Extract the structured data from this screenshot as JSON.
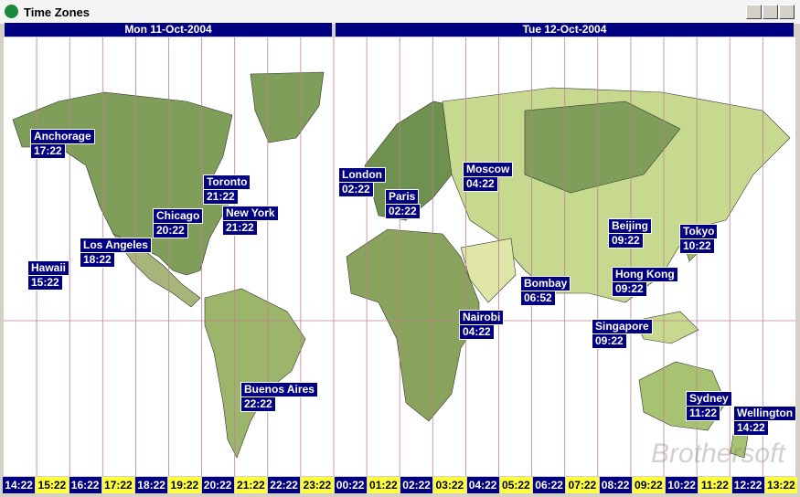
{
  "window": {
    "title": "Time Zones"
  },
  "dates": [
    "Mon 11-Oct-2004",
    "Tue 12-Oct-2004"
  ],
  "cities": [
    {
      "name": "Anchorage",
      "time": "17:22"
    },
    {
      "name": "Toronto",
      "time": "21:22"
    },
    {
      "name": "Chicago",
      "time": "20:22"
    },
    {
      "name": "New York",
      "time": "21:22"
    },
    {
      "name": "Los Angeles",
      "time": "18:22"
    },
    {
      "name": "Hawaii",
      "time": "15:22"
    },
    {
      "name": "London",
      "time": "02:22"
    },
    {
      "name": "Paris",
      "time": "02:22"
    },
    {
      "name": "Moscow",
      "time": "04:22"
    },
    {
      "name": "Beijing",
      "time": "09:22"
    },
    {
      "name": "Tokyo",
      "time": "10:22"
    },
    {
      "name": "Hong Kong",
      "time": "09:22"
    },
    {
      "name": "Bombay",
      "time": "06:52"
    },
    {
      "name": "Singapore",
      "time": "09:22"
    },
    {
      "name": "Nairobi",
      "time": "04:22"
    },
    {
      "name": "Buenos Aires",
      "time": "22:22"
    },
    {
      "name": "Sydney",
      "time": "11:22"
    },
    {
      "name": "Wellington",
      "time": "14:22"
    }
  ],
  "time_strip": [
    "14:22",
    "15:22",
    "16:22",
    "17:22",
    "18:22",
    "19:22",
    "20:22",
    "21:22",
    "22:22",
    "23:22",
    "00:22",
    "01:22",
    "02:22",
    "03:22",
    "04:22",
    "05:22",
    "06:22",
    "07:22",
    "08:22",
    "09:22",
    "10:22",
    "11:22",
    "12:22",
    "13:22"
  ],
  "watermark": "Brothersoft"
}
